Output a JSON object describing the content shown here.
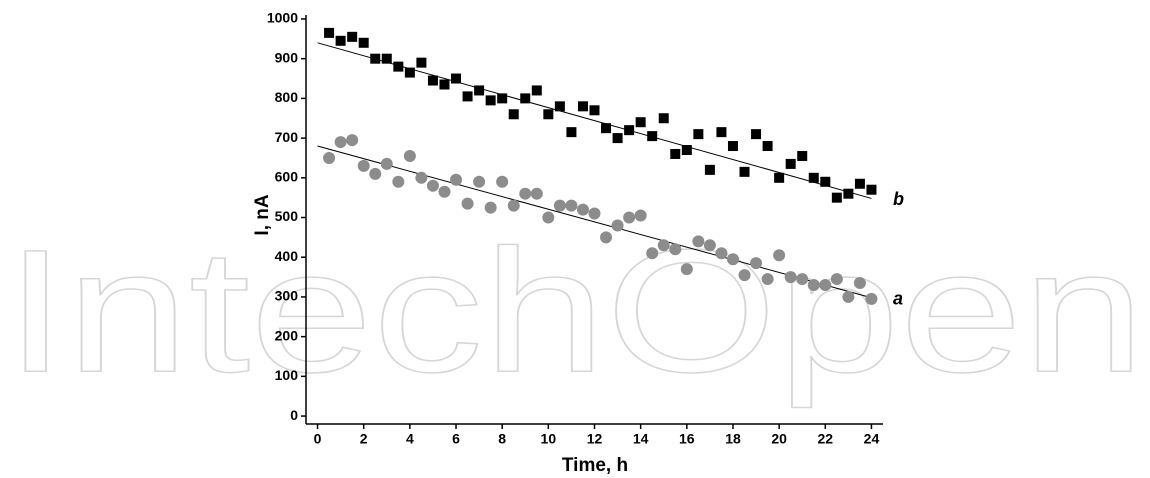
{
  "chart_data": {
    "type": "scatter",
    "watermark": "IntechOpen",
    "xlabel": "Time, h",
    "ylabel": "I, nA",
    "xlim": [
      -0.5,
      24.5
    ],
    "ylim": [
      -20,
      1010
    ],
    "xticks": [
      0,
      2,
      4,
      6,
      8,
      10,
      12,
      14,
      16,
      18,
      20,
      22,
      24
    ],
    "yticks": [
      0,
      100,
      200,
      300,
      400,
      500,
      600,
      700,
      800,
      900,
      1000
    ],
    "x": [
      0.5,
      1,
      1.5,
      2,
      2.5,
      3,
      3.5,
      4,
      4.5,
      5,
      5.5,
      6,
      6.5,
      7,
      7.5,
      8,
      8.5,
      9,
      9.5,
      10,
      10.5,
      11,
      11.5,
      12,
      12.5,
      13,
      13.5,
      14,
      14.5,
      15,
      15.5,
      16,
      16.5,
      17,
      17.5,
      18,
      18.5,
      19,
      19.5,
      20,
      20.5,
      21,
      21.5,
      22,
      22.5,
      23,
      23.5,
      24
    ],
    "series": [
      {
        "name": "b",
        "color": "#000000",
        "marker": "square",
        "values": [
          965,
          945,
          955,
          940,
          900,
          900,
          880,
          865,
          890,
          845,
          835,
          850,
          805,
          820,
          795,
          800,
          760,
          800,
          820,
          760,
          780,
          715,
          780,
          770,
          725,
          700,
          720,
          740,
          705,
          750,
          660,
          670,
          710,
          620,
          715,
          680,
          615,
          710,
          680,
          600,
          635,
          655,
          600,
          590,
          550,
          560,
          585,
          570
        ]
      },
      {
        "name": "a",
        "color": "#8c8c8c",
        "marker": "circle",
        "values": [
          650,
          690,
          695,
          630,
          610,
          635,
          590,
          655,
          600,
          580,
          565,
          595,
          535,
          590,
          525,
          590,
          530,
          560,
          560,
          500,
          530,
          530,
          520,
          510,
          450,
          480,
          500,
          505,
          410,
          430,
          420,
          370,
          440,
          430,
          410,
          395,
          355,
          385,
          345,
          405,
          350,
          345,
          330,
          330,
          345,
          300,
          335,
          295
        ]
      }
    ],
    "fit_lines": [
      {
        "x": [
          0,
          24
        ],
        "values": [
          940,
          548
        ]
      },
      {
        "x": [
          0,
          24
        ],
        "values": [
          680,
          298
        ]
      }
    ]
  }
}
